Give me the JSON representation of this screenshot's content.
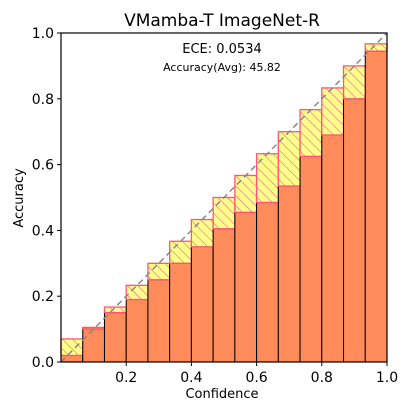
{
  "chart_data": {
    "type": "bar",
    "title": "VMamba-T  ImageNet-R",
    "xlabel": "Confidence",
    "ylabel": "Accuracy",
    "xlim": [
      0.0,
      1.0
    ],
    "ylim": [
      0.0,
      1.0
    ],
    "xticks": [
      "0.2",
      "0.4",
      "0.6",
      "0.8",
      "1.0"
    ],
    "xtick_values": [
      0.2,
      0.4,
      0.6,
      0.8,
      1.0
    ],
    "yticks": [
      "0.0",
      "0.2",
      "0.4",
      "0.6",
      "0.8",
      "1.0"
    ],
    "ytick_values": [
      0.0,
      0.2,
      0.4,
      0.6,
      0.8,
      1.0
    ],
    "annotations": [
      "ECE: 0.0534",
      "Accuracy(Avg): 45.82"
    ],
    "bins": [
      0.0,
      0.0667,
      0.1333,
      0.2,
      0.2667,
      0.3333,
      0.4,
      0.4667,
      0.5333,
      0.6,
      0.6667,
      0.7333,
      0.8,
      0.8667,
      0.9333
    ],
    "bin_width": 0.0667,
    "accuracy": [
      0.02,
      0.105,
      0.15,
      0.19,
      0.25,
      0.3,
      0.35,
      0.405,
      0.455,
      0.485,
      0.535,
      0.625,
      0.69,
      0.8,
      0.945
    ],
    "confidence": [
      0.07,
      0.1,
      0.167,
      0.233,
      0.3,
      0.367,
      0.433,
      0.5,
      0.567,
      0.633,
      0.7,
      0.767,
      0.833,
      0.9,
      0.967
    ],
    "diagonal": "dashed",
    "colors": {
      "accuracy_bar": "#ff8c5a",
      "gap_fill": "#ffff66",
      "gap_edge": "#ff5577",
      "bar_edge": "#000000",
      "diagonal": "#888888",
      "overlap_fill": "#f5a623"
    }
  }
}
